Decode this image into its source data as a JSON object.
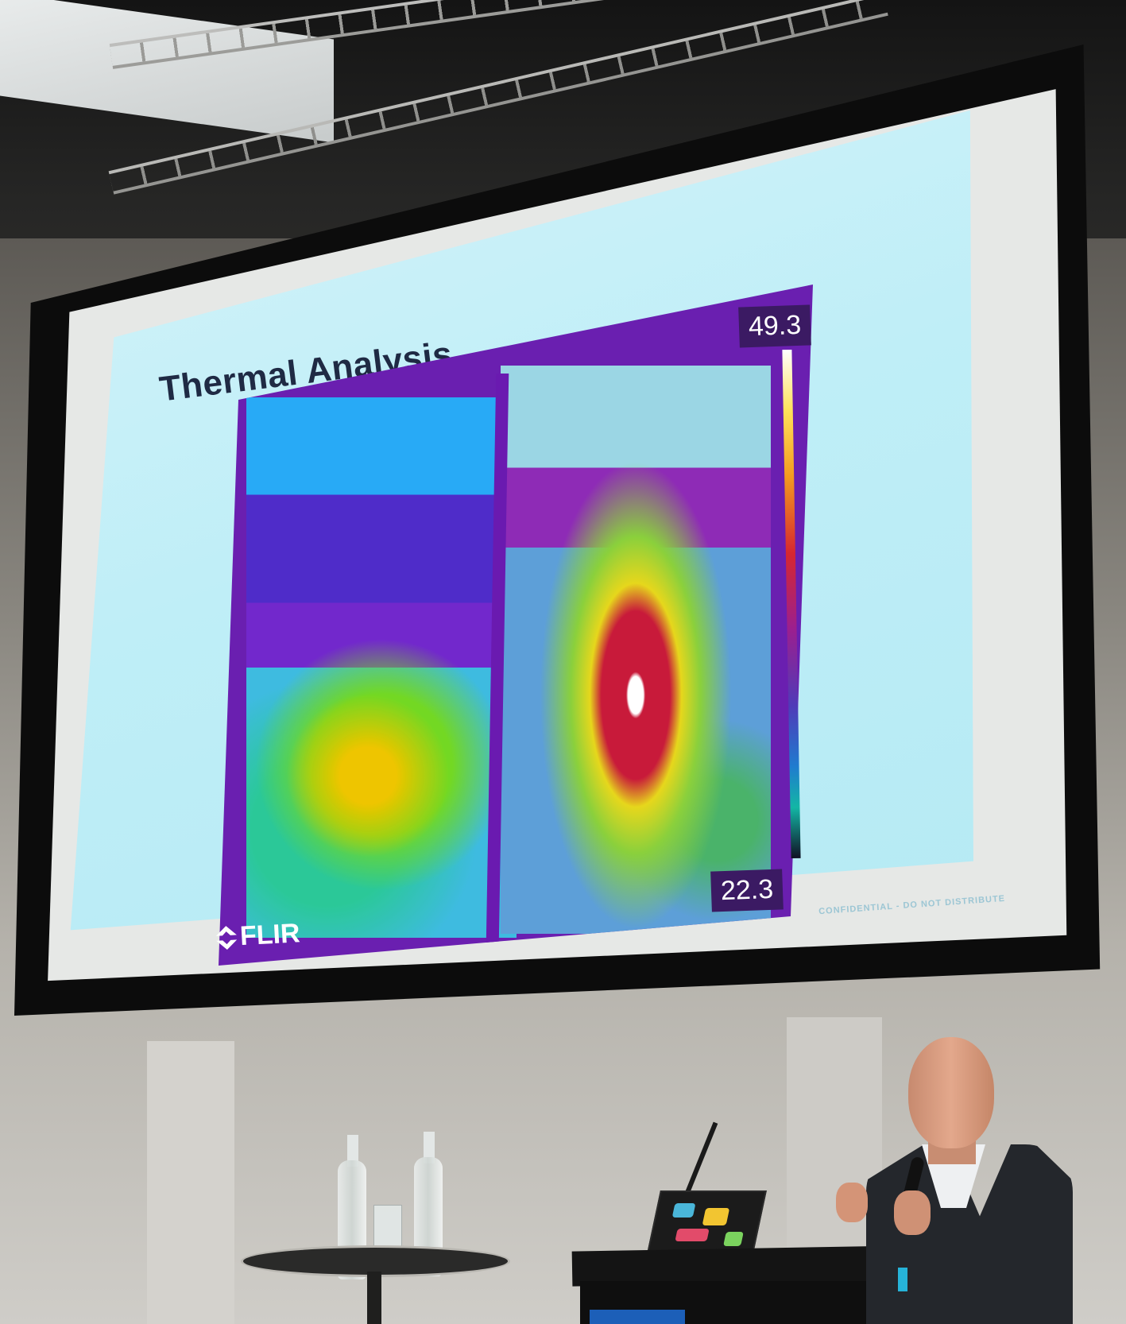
{
  "slide": {
    "title": "Thermal Analysis",
    "scale_max": "49.3",
    "scale_min": "22.3",
    "logo_text": "FLIR",
    "footer": "CONFIDENTIAL - DO NOT DISTRIBUTE"
  },
  "colors": {
    "slide_background": "#c3eef7",
    "title_text": "#1f2a44",
    "thermal_base": "#6a1fb0",
    "scale_label_bg": "#3b1a63"
  },
  "icons": {
    "logo": "flir-logo-icon"
  }
}
